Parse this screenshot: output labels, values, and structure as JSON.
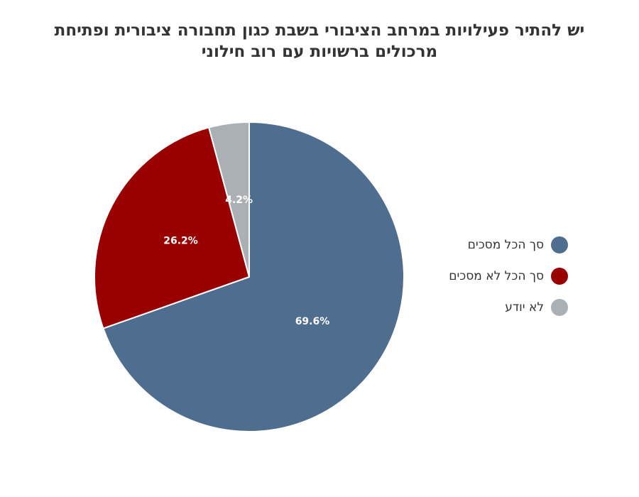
{
  "chart_data": {
    "type": "pie",
    "title": "יש להתיר פעילויות במרחב הציבורי בשבת כגון תחבורה ציבורית ופתיחת מרכולים ברשויות עם רוב חילוני",
    "slices": [
      {
        "label": "סך הכל מסכים",
        "value": 69.6,
        "display": "69.6%",
        "color": "#4f6d8f"
      },
      {
        "label": "סך הכל לא מסכים",
        "value": 26.2,
        "display": "26.2%",
        "color": "#990000"
      },
      {
        "label": "לא יודע",
        "value": 4.2,
        "display": "4.2%",
        "color": "#aab0b3"
      }
    ],
    "start_angle_deg": 0,
    "direction": "clockwise",
    "legend_position": "right"
  }
}
